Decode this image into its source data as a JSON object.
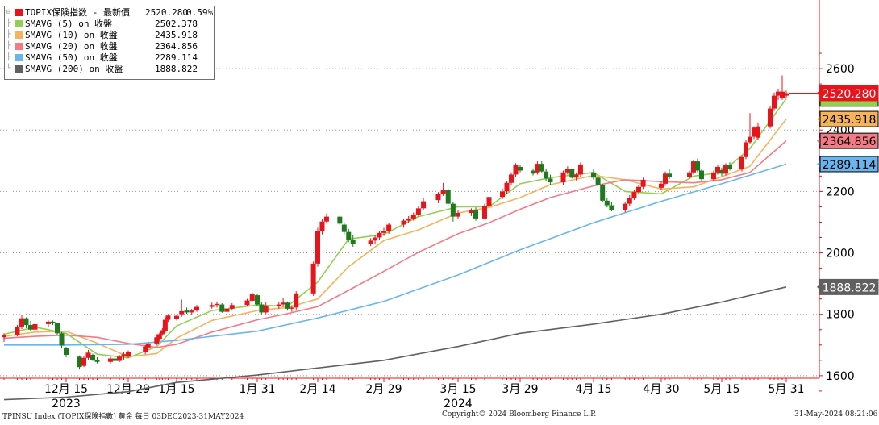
{
  "legend": {
    "items": [
      {
        "name": "TOPIX保険指数 - 最新價",
        "value": "2520.280",
        "change": "0.59%",
        "color": "#e8141b"
      },
      {
        "name": "SMAVG (5)  on 收盤",
        "value": "2502.378",
        "color": "#92d050"
      },
      {
        "name": "SMAVG (10)  on 收盤",
        "value": "2435.918",
        "color": "#f5b35c"
      },
      {
        "name": "SMAVG (20)  on 收盤",
        "value": "2364.856",
        "color": "#f47a85"
      },
      {
        "name": "SMAVG (50)  on 收盤",
        "value": "2289.114",
        "color": "#69b6ee"
      },
      {
        "name": "SMAVG (200)  on 收盤",
        "value": "1888.822",
        "color": "#606060"
      }
    ]
  },
  "footer": {
    "left": "TPINSU Index (TOPIX保険指數) 黄金  每日 03DEC2023-31MAY2024",
    "center": "Copyright© 2024 Bloomberg Finance L.P.",
    "right": "31-May-2024 08:21:06"
  },
  "chart_data": {
    "type": "candlestick",
    "title": "",
    "xlabel": "",
    "ylabel": "",
    "ylim": [
      1500,
      2650
    ],
    "y_ticks": [
      1600,
      1800,
      2000,
      2200,
      2400,
      2600
    ],
    "grid": "horizontal dotted",
    "legend_position": "top-left",
    "x_ticks": [
      {
        "label": "12月 15",
        "date": "2023-12-15"
      },
      {
        "label": "12月 29",
        "date": "2023-12-29"
      },
      {
        "label": "1月 15",
        "date": "2024-01-15"
      },
      {
        "label": "1月 31",
        "date": "2024-01-31"
      },
      {
        "label": "2月 14",
        "date": "2024-02-14"
      },
      {
        "label": "2月 29",
        "date": "2024-02-29"
      },
      {
        "label": "3月 15",
        "date": "2024-03-15"
      },
      {
        "label": "3月 29",
        "date": "2024-03-29"
      },
      {
        "label": "4月 15",
        "date": "2024-04-15"
      },
      {
        "label": "4月 30",
        "date": "2024-04-30"
      },
      {
        "label": "5月 15",
        "date": "2024-05-15"
      },
      {
        "label": "5月 31",
        "date": "2024-05-31"
      }
    ],
    "year_labels": [
      {
        "label": "2023",
        "date": "2023-12-15"
      },
      {
        "label": "2024",
        "date": "2024-03-15"
      }
    ],
    "up_color": "#e8141b",
    "down_color": "#1f7a1f",
    "candles": [
      [
        "2023-12-01",
        1725,
        1738,
        1710,
        1732
      ],
      [
        "2023-12-04",
        1732,
        1765,
        1728,
        1760
      ],
      [
        "2023-12-05",
        1760,
        1798,
        1752,
        1787
      ],
      [
        "2023-12-06",
        1787,
        1790,
        1755,
        1765
      ],
      [
        "2023-12-07",
        1765,
        1778,
        1745,
        1750
      ],
      [
        "2023-12-08",
        1750,
        1775,
        1742,
        1768
      ],
      [
        "2023-12-11",
        1768,
        1780,
        1760,
        1776
      ],
      [
        "2023-12-12",
        1776,
        1780,
        1765,
        1771
      ],
      [
        "2023-12-13",
        1771,
        1773,
        1732,
        1738
      ],
      [
        "2023-12-14",
        1738,
        1742,
        1690,
        1698
      ],
      [
        "2023-12-15",
        1690,
        1694,
        1660,
        1668
      ],
      [
        "2023-12-18",
        1662,
        1666,
        1620,
        1628
      ],
      [
        "2023-12-19",
        1632,
        1665,
        1628,
        1658
      ],
      [
        "2023-12-20",
        1658,
        1684,
        1650,
        1675
      ],
      [
        "2023-12-21",
        1668,
        1672,
        1648,
        1652
      ],
      [
        "2023-12-22",
        1652,
        1660,
        1640,
        1645
      ],
      [
        "2023-12-25",
        1645,
        1662,
        1640,
        1656
      ],
      [
        "2023-12-26",
        1656,
        1665,
        1640,
        1648
      ],
      [
        "2023-12-27",
        1648,
        1668,
        1644,
        1662
      ],
      [
        "2023-12-28",
        1662,
        1676,
        1652,
        1670
      ],
      [
        "2023-12-29",
        1662,
        1682,
        1658,
        1676
      ],
      [
        "2024-01-04",
        1676,
        1700,
        1670,
        1695
      ],
      [
        "2024-01-05",
        1692,
        1712,
        1688,
        1705
      ],
      [
        "2024-01-08",
        1705,
        1735,
        1700,
        1725
      ],
      [
        "2024-01-09",
        1720,
        1740,
        1712,
        1735
      ],
      [
        "2024-01-10",
        1735,
        1755,
        1730,
        1748
      ],
      [
        "2024-01-11",
        1745,
        1790,
        1740,
        1782
      ],
      [
        "2024-01-12",
        1782,
        1800,
        1775,
        1796
      ],
      [
        "2024-01-15",
        1786,
        1800,
        1780,
        1795
      ],
      [
        "2024-01-16",
        1800,
        1848,
        1792,
        1810
      ],
      [
        "2024-01-17",
        1812,
        1822,
        1802,
        1806
      ],
      [
        "2024-01-18",
        1806,
        1818,
        1798,
        1812
      ],
      [
        "2024-01-19",
        1812,
        1830,
        1808,
        1824
      ],
      [
        "2024-01-22",
        1824,
        1838,
        1818,
        1830
      ],
      [
        "2024-01-23",
        1830,
        1842,
        1822,
        1834
      ],
      [
        "2024-01-24",
        1832,
        1836,
        1805,
        1808
      ],
      [
        "2024-01-25",
        1808,
        1825,
        1800,
        1818
      ],
      [
        "2024-01-26",
        1818,
        1836,
        1812,
        1830
      ],
      [
        "2024-01-29",
        1830,
        1850,
        1826,
        1845
      ],
      [
        "2024-01-30",
        1844,
        1872,
        1840,
        1866
      ],
      [
        "2024-01-31",
        1862,
        1866,
        1828,
        1832
      ],
      [
        "2024-02-01",
        1832,
        1840,
        1800,
        1806
      ],
      [
        "2024-02-02",
        1806,
        1838,
        1800,
        1826
      ],
      [
        "2024-02-05",
        1826,
        1840,
        1818,
        1832
      ],
      [
        "2024-02-06",
        1832,
        1852,
        1824,
        1838
      ],
      [
        "2024-02-07",
        1838,
        1842,
        1812,
        1818
      ],
      [
        "2024-02-08",
        1818,
        1830,
        1808,
        1822
      ],
      [
        "2024-02-09",
        1822,
        1875,
        1815,
        1868
      ],
      [
        "2024-02-13",
        1868,
        1972,
        1860,
        1965
      ],
      [
        "2024-02-14",
        1965,
        2082,
        1955,
        2070
      ],
      [
        "2024-02-15",
        2070,
        2110,
        2060,
        2102
      ],
      [
        "2024-02-16",
        2102,
        2128,
        2095,
        2118
      ],
      [
        "2024-02-19",
        2118,
        2122,
        2090,
        2095
      ],
      [
        "2024-02-20",
        2092,
        2100,
        2060,
        2068
      ],
      [
        "2024-02-21",
        2068,
        2078,
        2035,
        2042
      ],
      [
        "2024-02-22",
        2042,
        2058,
        2020,
        2028
      ],
      [
        "2024-02-26",
        2030,
        2048,
        2022,
        2040
      ],
      [
        "2024-02-27",
        2040,
        2058,
        2030,
        2050
      ],
      [
        "2024-02-28",
        2050,
        2072,
        2042,
        2065
      ],
      [
        "2024-02-29",
        2065,
        2082,
        2055,
        2070
      ],
      [
        "2024-03-01",
        2070,
        2098,
        2062,
        2092
      ],
      [
        "2024-03-04",
        2092,
        2112,
        2082,
        2105
      ],
      [
        "2024-03-05",
        2105,
        2120,
        2098,
        2112
      ],
      [
        "2024-03-06",
        2112,
        2132,
        2105,
        2125
      ],
      [
        "2024-03-07",
        2125,
        2152,
        2118,
        2145
      ],
      [
        "2024-03-08",
        2145,
        2178,
        2138,
        2168
      ],
      [
        "2024-03-11",
        2172,
        2198,
        2162,
        2192
      ],
      [
        "2024-03-12",
        2192,
        2228,
        2185,
        2205
      ],
      [
        "2024-03-13",
        2205,
        2208,
        2155,
        2160
      ],
      [
        "2024-03-14",
        2160,
        2165,
        2102,
        2118
      ],
      [
        "2024-03-15",
        2118,
        2140,
        2110,
        2130
      ],
      [
        "2024-03-18",
        2130,
        2145,
        2120,
        2138
      ],
      [
        "2024-03-19",
        2138,
        2148,
        2105,
        2112
      ],
      [
        "2024-03-21",
        2112,
        2160,
        2108,
        2152
      ],
      [
        "2024-03-22",
        2152,
        2190,
        2145,
        2182
      ],
      [
        "2024-03-25",
        2182,
        2210,
        2175,
        2200
      ],
      [
        "2024-03-26",
        2200,
        2235,
        2192,
        2228
      ],
      [
        "2024-03-27",
        2228,
        2262,
        2222,
        2255
      ],
      [
        "2024-03-28",
        2255,
        2292,
        2248,
        2285
      ],
      [
        "2024-03-29",
        2280,
        2285,
        2262,
        2268
      ],
      [
        "2024-04-01",
        2268,
        2275,
        2252,
        2258
      ],
      [
        "2024-04-02",
        2262,
        2298,
        2255,
        2290
      ],
      [
        "2024-04-03",
        2290,
        2298,
        2262,
        2265
      ],
      [
        "2024-04-04",
        2265,
        2275,
        2235,
        2242
      ],
      [
        "2024-04-05",
        2242,
        2255,
        2222,
        2230
      ],
      [
        "2024-04-08",
        2230,
        2268,
        2222,
        2262
      ],
      [
        "2024-04-09",
        2262,
        2282,
        2255,
        2272
      ],
      [
        "2024-04-10",
        2272,
        2275,
        2242,
        2245
      ],
      [
        "2024-04-11",
        2245,
        2262,
        2236,
        2255
      ],
      [
        "2024-04-12",
        2255,
        2295,
        2248,
        2288
      ],
      [
        "2024-04-15",
        2262,
        2272,
        2238,
        2245
      ],
      [
        "2024-04-16",
        2245,
        2250,
        2218,
        2222
      ],
      [
        "2024-04-17",
        2222,
        2225,
        2165,
        2170
      ],
      [
        "2024-04-18",
        2170,
        2180,
        2148,
        2155
      ],
      [
        "2024-04-19",
        2155,
        2165,
        2135,
        2140
      ],
      [
        "2024-04-22",
        2140,
        2165,
        2132,
        2160
      ],
      [
        "2024-04-23",
        2160,
        2188,
        2152,
        2180
      ],
      [
        "2024-04-24",
        2180,
        2205,
        2172,
        2198
      ],
      [
        "2024-04-25",
        2198,
        2222,
        2190,
        2215
      ],
      [
        "2024-04-26",
        2215,
        2245,
        2208,
        2238
      ],
      [
        "2024-04-30",
        2212,
        2232,
        2205,
        2225
      ],
      [
        "2024-05-01",
        2225,
        2265,
        2218,
        2258
      ],
      [
        "2024-05-02",
        2258,
        2272,
        2240,
        2248
      ],
      [
        "2024-05-07",
        2248,
        2268,
        2242,
        2262
      ],
      [
        "2024-05-08",
        2262,
        2302,
        2255,
        2298
      ],
      [
        "2024-05-09",
        2298,
        2308,
        2262,
        2268
      ],
      [
        "2024-05-10",
        2268,
        2272,
        2235,
        2240
      ],
      [
        "2024-05-13",
        2240,
        2268,
        2232,
        2262
      ],
      [
        "2024-05-14",
        2262,
        2288,
        2255,
        2280
      ],
      [
        "2024-05-15",
        2270,
        2278,
        2250,
        2258
      ],
      [
        "2024-05-16",
        2258,
        2292,
        2252,
        2286
      ],
      [
        "2024-05-17",
        2286,
        2295,
        2268,
        2272
      ],
      [
        "2024-05-20",
        2272,
        2318,
        2265,
        2312
      ],
      [
        "2024-05-21",
        2312,
        2368,
        2305,
        2360
      ],
      [
        "2024-05-22",
        2360,
        2455,
        2355,
        2378
      ],
      [
        "2024-05-23",
        2378,
        2412,
        2370,
        2408
      ],
      [
        "2024-05-24",
        2375,
        2425,
        2368,
        2412
      ],
      [
        "2024-05-27",
        2412,
        2478,
        2405,
        2470
      ],
      [
        "2024-05-28",
        2470,
        2522,
        2462,
        2512
      ],
      [
        "2024-05-29",
        2512,
        2535,
        2498,
        2525
      ],
      [
        "2024-05-30",
        2505,
        2578,
        2498,
        2525
      ],
      [
        "2024-05-31",
        2512,
        2528,
        2505,
        2520
      ]
    ],
    "series": [
      {
        "name": "SMAVG (5)  on 收盤",
        "color": "#92d050",
        "x": [
          "2023-12-01",
          "2023-12-08",
          "2023-12-15",
          "2023-12-22",
          "2023-12-29",
          "2024-01-08",
          "2024-01-15",
          "2024-01-22",
          "2024-01-31",
          "2024-02-07",
          "2024-02-14",
          "2024-02-21",
          "2024-02-29",
          "2024-03-07",
          "2024-03-15",
          "2024-03-22",
          "2024-03-29",
          "2024-04-05",
          "2024-04-15",
          "2024-04-22",
          "2024-04-30",
          "2024-05-08",
          "2024-05-15",
          "2024-05-22",
          "2024-05-31"
        ],
        "values": [
          1735,
          1758,
          1738,
          1670,
          1658,
          1695,
          1762,
          1812,
          1830,
          1826,
          1905,
          2045,
          2060,
          2118,
          2150,
          2150,
          2225,
          2245,
          2262,
          2200,
          2192,
          2250,
          2262,
          2340,
          2502
        ]
      },
      {
        "name": "SMAVG (10)  on 收盤",
        "color": "#f5b35c",
        "x": [
          "2023-12-01",
          "2023-12-08",
          "2023-12-15",
          "2023-12-22",
          "2023-12-29",
          "2024-01-08",
          "2024-01-15",
          "2024-01-22",
          "2024-01-31",
          "2024-02-07",
          "2024-02-14",
          "2024-02-21",
          "2024-02-29",
          "2024-03-07",
          "2024-03-15",
          "2024-03-22",
          "2024-03-29",
          "2024-04-05",
          "2024-04-15",
          "2024-04-22",
          "2024-04-30",
          "2024-05-08",
          "2024-05-15",
          "2024-05-22",
          "2024-05-31"
        ],
        "values": [
          1728,
          1742,
          1745,
          1706,
          1662,
          1672,
          1722,
          1780,
          1812,
          1822,
          1850,
          1955,
          2040,
          2075,
          2130,
          2148,
          2180,
          2222,
          2252,
          2238,
          2208,
          2215,
          2248,
          2282,
          2436
        ]
      },
      {
        "name": "SMAVG (20)  on 收盤",
        "color": "#f47a85",
        "x": [
          "2023-12-01",
          "2023-12-08",
          "2023-12-15",
          "2023-12-22",
          "2023-12-29",
          "2024-01-08",
          "2024-01-15",
          "2024-01-22",
          "2024-01-31",
          "2024-02-07",
          "2024-02-14",
          "2024-02-21",
          "2024-02-29",
          "2024-03-07",
          "2024-03-15",
          "2024-03-22",
          "2024-03-29",
          "2024-04-05",
          "2024-04-15",
          "2024-04-22",
          "2024-04-30",
          "2024-05-08",
          "2024-05-15",
          "2024-05-22",
          "2024-05-31"
        ],
        "values": [
          1722,
          1728,
          1732,
          1725,
          1705,
          1692,
          1702,
          1742,
          1782,
          1802,
          1825,
          1878,
          1940,
          2002,
          2062,
          2098,
          2142,
          2180,
          2218,
          2238,
          2232,
          2228,
          2238,
          2262,
          2365
        ]
      },
      {
        "name": "SMAVG (50)  on 收盤",
        "color": "#69b6ee",
        "x": [
          "2023-12-01",
          "2023-12-15",
          "2023-12-29",
          "2024-01-15",
          "2024-01-31",
          "2024-02-14",
          "2024-02-29",
          "2024-03-15",
          "2024-03-29",
          "2024-04-15",
          "2024-04-30",
          "2024-05-15",
          "2024-05-31"
        ],
        "values": [
          1700,
          1700,
          1702,
          1715,
          1745,
          1788,
          1842,
          1928,
          2010,
          2098,
          2168,
          2225,
          2289
        ]
      },
      {
        "name": "SMAVG (200)  on 收盤",
        "color": "#606060",
        "x": [
          "2023-12-01",
          "2023-12-15",
          "2023-12-29",
          "2024-01-15",
          "2024-01-31",
          "2024-02-14",
          "2024-02-29",
          "2024-03-15",
          "2024-03-29",
          "2024-04-15",
          "2024-04-30",
          "2024-05-15",
          "2024-05-31"
        ],
        "values": [
          1522,
          1530,
          1548,
          1578,
          1602,
          1625,
          1650,
          1695,
          1738,
          1768,
          1800,
          1840,
          1889
        ]
      }
    ],
    "price_labels": [
      {
        "value": "2520.280",
        "at": 2520.28,
        "bg": "#e8141b",
        "fg": "#ffffff",
        "border": "#e8141b"
      },
      {
        "value": "2435.918",
        "at": 2435.918,
        "bg": "#f5b35c",
        "fg": "#000000",
        "border": "#000000"
      },
      {
        "value": "2364.856",
        "at": 2364.856,
        "bg": "#f47a85",
        "fg": "#000000",
        "border": "#000000"
      },
      {
        "value": "2289.114",
        "at": 2289.114,
        "bg": "#69b6ee",
        "fg": "#000000",
        "border": "#000000"
      },
      {
        "value": "1888.822",
        "at": 1888.822,
        "bg": "#606060",
        "fg": "#ffffff",
        "border": "#606060"
      }
    ],
    "hidden_price_label_color": "#92d050"
  }
}
